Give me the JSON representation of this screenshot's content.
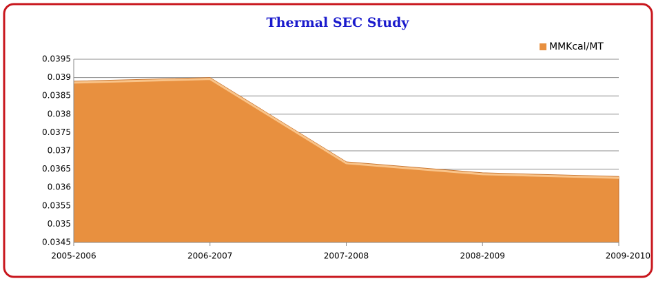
{
  "chart_data": {
    "type": "area",
    "title": "Thermal SEC Study",
    "categories": [
      "2005-2006",
      "2006-2007",
      "2007-2008",
      "2008-2009",
      "2009-2010"
    ],
    "series": [
      {
        "name": "MMKcal/MT",
        "color": "#e8903f",
        "values": [
          0.0389,
          0.039,
          0.0367,
          0.0364,
          0.0363
        ]
      }
    ],
    "ylim": [
      0.0345,
      0.0395
    ],
    "yticks": [
      0.0345,
      0.035,
      0.0355,
      0.036,
      0.0365,
      0.037,
      0.0375,
      0.038,
      0.0385,
      0.039,
      0.0395
    ],
    "grid": true,
    "legend": "top-right"
  }
}
